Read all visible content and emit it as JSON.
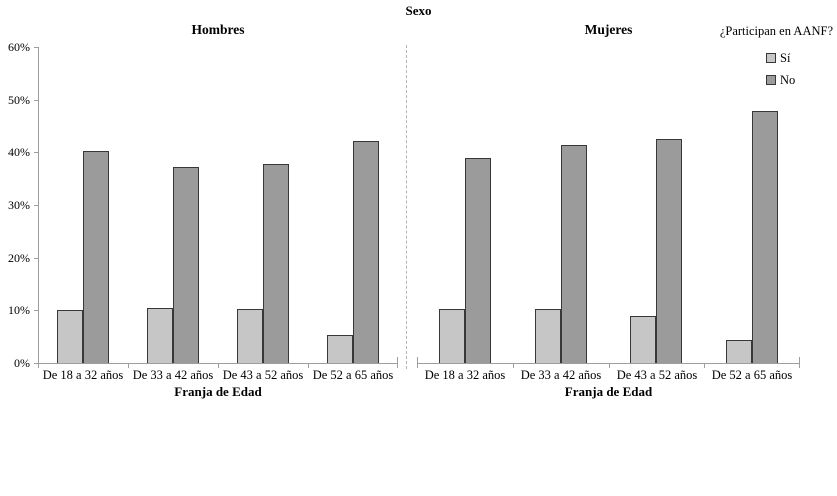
{
  "figure": {
    "title": "Sexo",
    "xlabel": "Franja de Edad",
    "legend": {
      "title": "¿Participan en AANF?",
      "items": [
        {
          "label": "Sí",
          "color": "#c6c6c6"
        },
        {
          "label": "No",
          "color": "#9b9b9b"
        }
      ]
    },
    "colors": {
      "si_fill": "#c6c6c6",
      "no_fill": "#9b9b9b",
      "bar_border": "#383838",
      "axis": "#9e9e9e",
      "divider": "#b3b3b3",
      "text": "#000000"
    }
  },
  "chart_data": [
    {
      "type": "bar",
      "panel": "Hombres",
      "categories": [
        "De 18 a 32 años",
        "De 33 a 42 años",
        "De 43 a 52 años",
        "De 52 a 65 años"
      ],
      "series": [
        {
          "name": "Sí",
          "color": "#c6c6c6",
          "values": [
            10.1,
            10.4,
            10.2,
            5.3
          ]
        },
        {
          "name": "No",
          "color": "#9b9b9b",
          "values": [
            40.2,
            37.2,
            37.8,
            42.2
          ]
        }
      ],
      "xlabel": "Franja de Edad",
      "ylabel": "",
      "ylim": [
        0,
        60
      ],
      "yticks": [
        "0%",
        "10%",
        "20%",
        "30%",
        "40%",
        "50%",
        "60%"
      ],
      "grid": false,
      "legend_position": "top-right"
    },
    {
      "type": "bar",
      "panel": "Mujeres",
      "categories": [
        "De 18 a 32 años",
        "De 33 a 42 años",
        "De 43 a 52 años",
        "De 52 a 65 años"
      ],
      "series": [
        {
          "name": "Sí",
          "color": "#c6c6c6",
          "values": [
            10.2,
            10.2,
            9.0,
            4.3
          ]
        },
        {
          "name": "No",
          "color": "#9b9b9b",
          "values": [
            38.9,
            41.4,
            42.6,
            47.8
          ]
        }
      ],
      "xlabel": "Franja de Edad",
      "ylabel": "",
      "ylim": [
        0,
        60
      ],
      "yticks": [
        "0%",
        "10%",
        "20%",
        "30%",
        "40%",
        "50%",
        "60%"
      ],
      "grid": false,
      "legend_position": "top-right"
    }
  ]
}
